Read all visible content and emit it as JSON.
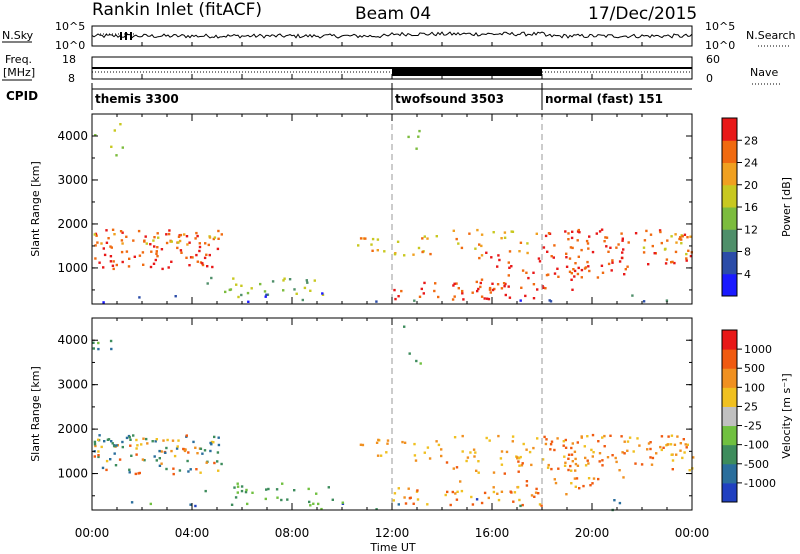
{
  "header": {
    "station": "Rankin Inlet (fitACF)",
    "beam": "Beam 04",
    "date": "17/Dec/2015"
  },
  "summary": {
    "nsky_label": "N.Sky",
    "nsearch_label": "N.Search",
    "freq_label": "Freq.",
    "freq_unit": "[MHz]",
    "nave_label": "Nave",
    "cpid_label": "CPID",
    "nsky_ticks": [
      "10^5",
      "10^0"
    ],
    "nsearch_ticks": [
      "10^5",
      "10^0"
    ],
    "freq_ticks": [
      "18",
      "8"
    ],
    "nave_ticks": [
      "60",
      "0"
    ]
  },
  "cpid_segments": [
    {
      "label": "themis 3300",
      "start_hour": 0
    },
    {
      "label": "twofsound 3503",
      "start_hour": 12
    },
    {
      "label": "normal (fast) 151",
      "start_hour": 18
    }
  ],
  "chart_data": [
    {
      "type": "heatmap",
      "panel": "power",
      "ylabel": "Slant Range [km]",
      "xlim": [
        0,
        24
      ],
      "ylim": [
        180,
        4500
      ],
      "yticks": [
        1000,
        2000,
        3000,
        4000
      ],
      "colorbar": {
        "title": "Power [dB]",
        "ticks": [
          "4",
          "8",
          "12",
          "16",
          "20",
          "24",
          "28"
        ],
        "colors": [
          "#1a1aff",
          "#2b4ca8",
          "#4f8f6a",
          "#7cbc3e",
          "#c8c820",
          "#f0a020",
          "#f06a10",
          "#e81818"
        ]
      }
    },
    {
      "type": "heatmap",
      "panel": "velocity",
      "ylabel": "Slant Range [km]",
      "xlabel": "Time UT",
      "xlim": [
        0,
        24
      ],
      "ylim": [
        180,
        4500
      ],
      "yticks": [
        1000,
        2000,
        3000,
        4000
      ],
      "xticks": [
        "00:00",
        "04:00",
        "08:00",
        "12:00",
        "16:00",
        "20:00",
        "00:00"
      ],
      "colorbar": {
        "title": "Velocity [m s⁻¹]",
        "ticks": [
          "1000",
          "500",
          "100",
          "25",
          "-25",
          "-100",
          "-500",
          "-1000"
        ],
        "colors": [
          "#2040c0",
          "#2a6e9c",
          "#3d8c5c",
          "#70c040",
          "#c0c0c0",
          "#f0c020",
          "#f09020",
          "#f05a10",
          "#e81818"
        ]
      }
    }
  ]
}
